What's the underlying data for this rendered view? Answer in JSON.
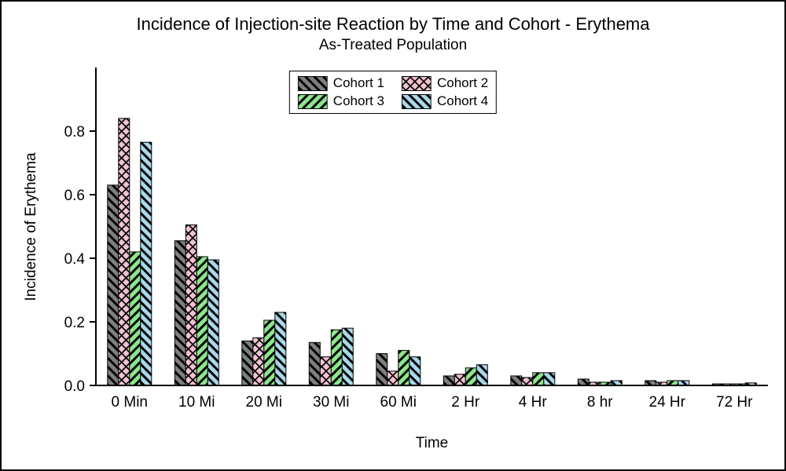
{
  "chart_data": {
    "type": "bar",
    "title": "Incidence of Injection-site Reaction by Time and Cohort - Erythema",
    "subtitle": "As-Treated Population",
    "xlabel": "Time",
    "ylabel": "Incidence of Erythema",
    "categories": [
      "0 Min",
      "10 Mi",
      "20 Mi",
      "30 Mi",
      "60 Mi",
      "2 Hr",
      "4 Hr",
      "8 hr",
      "24 Hr",
      "72 Hr"
    ],
    "ylim": [
      0,
      1.0
    ],
    "yticks": [
      0.0,
      0.2,
      0.4,
      0.6,
      0.8
    ],
    "ytick_labels": [
      "0.0",
      "0.2",
      "0.4",
      "0.6",
      "0.8"
    ],
    "grid": false,
    "legend_position": "top-center",
    "series": [
      {
        "name": "Cohort 1",
        "color": "#7F7F7F",
        "hatch": "\\",
        "values": [
          0.63,
          0.455,
          0.14,
          0.135,
          0.1,
          0.03,
          0.03,
          0.02,
          0.015,
          0.005
        ]
      },
      {
        "name": "Cohort 2",
        "color": "#F2C3CF",
        "hatch": "x",
        "values": [
          0.84,
          0.505,
          0.15,
          0.09,
          0.045,
          0.035,
          0.025,
          0.01,
          0.01,
          0.005
        ]
      },
      {
        "name": "Cohort 3",
        "color": "#8CE68C",
        "hatch": "/",
        "values": [
          0.42,
          0.405,
          0.205,
          0.175,
          0.11,
          0.055,
          0.04,
          0.01,
          0.015,
          0.005
        ]
      },
      {
        "name": "Cohort 4",
        "color": "#A8D8EA",
        "hatch": "\\",
        "values": [
          0.765,
          0.395,
          0.23,
          0.18,
          0.09,
          0.065,
          0.04,
          0.015,
          0.015,
          0.008
        ]
      }
    ],
    "hatch_line_color": "#000000",
    "bar_outline_color": "#000000"
  }
}
